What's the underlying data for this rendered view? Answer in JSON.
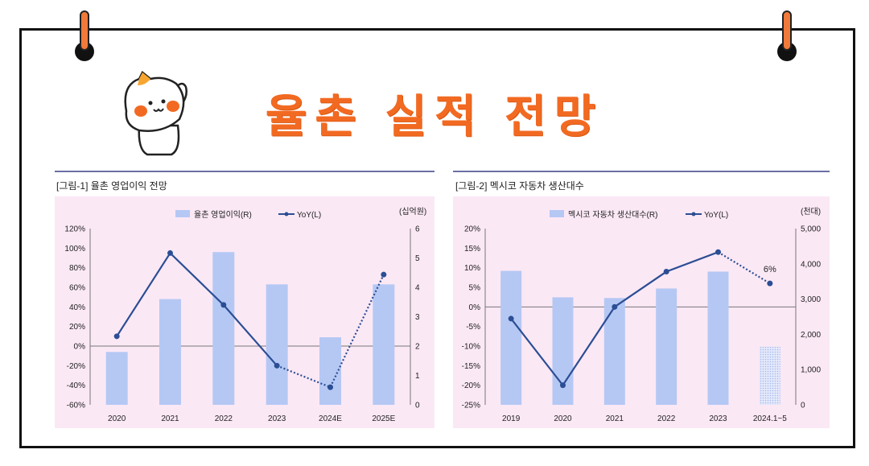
{
  "page": {
    "title": "율촌 실적 전망"
  },
  "charts": [
    {
      "fig_label": "[그림-1] 율촌 영업이익 전망",
      "unit_right": "(십억원)",
      "legend_bar": "율촌 영업이익(R)",
      "legend_line": "YoY(L)",
      "left_ticks": [
        "120%",
        "100%",
        "80%",
        "60%",
        "40%",
        "20%",
        "0%",
        "-20%",
        "-40%",
        "-60%"
      ],
      "right_ticks": [
        "6",
        "5",
        "4",
        "3",
        "2",
        "1",
        "0"
      ],
      "categories": [
        "2020",
        "2021",
        "2022",
        "2023",
        "2024E",
        "2025E"
      ]
    },
    {
      "fig_label": "[그림-2] 멕시코 자동차 생산대수",
      "unit_right": "(천대)",
      "legend_bar": "멕시코 자동차 생산대수(R)",
      "legend_line": "YoY(L)",
      "left_ticks": [
        "20%",
        "15%",
        "10%",
        "5%",
        "0%",
        "-5%",
        "-10%",
        "-15%",
        "-20%",
        "-25%"
      ],
      "right_ticks": [
        "5,000",
        "4,000",
        "3,000",
        "2,000",
        "1,000",
        "0"
      ],
      "categories": [
        "2019",
        "2020",
        "2021",
        "2022",
        "2023",
        "2024.1~5"
      ],
      "annotation": "6%"
    }
  ],
  "chart_data": [
    {
      "type": "bar",
      "title": "[그림-1] 율촌 영업이익 전망",
      "categories": [
        "2020",
        "2021",
        "2022",
        "2023",
        "2024E",
        "2025E"
      ],
      "series": [
        {
          "name": "율촌 영업이익(R)",
          "axis": "right",
          "values": [
            1.8,
            3.6,
            5.2,
            4.1,
            2.3,
            4.1
          ]
        },
        {
          "name": "YoY(L)",
          "axis": "left",
          "type": "line",
          "values": [
            10,
            95,
            42,
            -20,
            -42,
            73
          ],
          "projected_from_index": 3
        }
      ],
      "ylim_left": [
        -60,
        120
      ],
      "ylim_right": [
        0,
        6
      ],
      "legend": "top"
    },
    {
      "type": "bar",
      "title": "[그림-2] 멕시코 자동차 생산대수",
      "categories": [
        "2019",
        "2020",
        "2021",
        "2022",
        "2023",
        "2024.1~5"
      ],
      "series": [
        {
          "name": "멕시코 자동차 생산대수(R)",
          "axis": "right",
          "values": [
            3800,
            3050,
            3030,
            3300,
            3780,
            1650
          ],
          "partial_last": true
        },
        {
          "name": "YoY(L)",
          "axis": "left",
          "type": "line",
          "values": [
            -3,
            -20,
            0,
            9,
            14,
            6
          ],
          "projected_from_index": 4
        }
      ],
      "ylim_left": [
        -25,
        20
      ],
      "ylim_right": [
        0,
        5000
      ],
      "legend": "top",
      "annotations": [
        {
          "text": "6%",
          "category": "2024.1~5"
        }
      ]
    }
  ],
  "colors": {
    "title": "#f26a22",
    "bar": "#b5c8f4",
    "line": "#2b4e94",
    "panel": "#fbe8f5",
    "panel_rule": "#6b6fa4"
  }
}
